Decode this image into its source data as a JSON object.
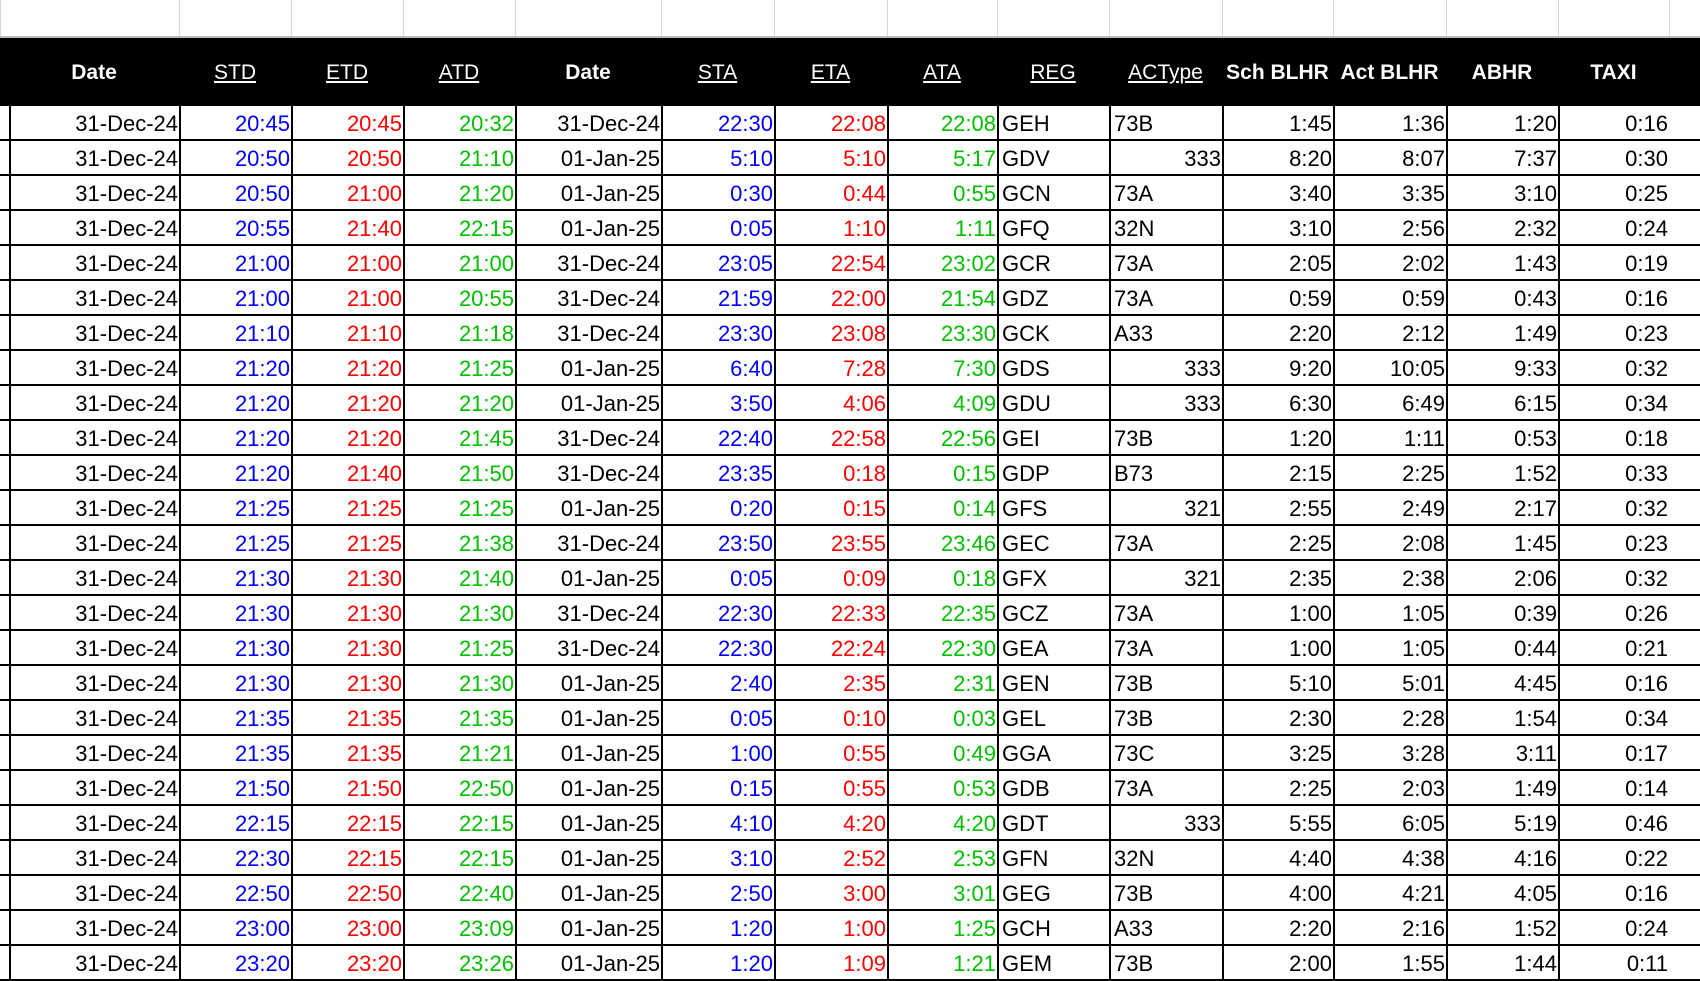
{
  "colors": {
    "std": "#0000ff",
    "etd": "#ff0000",
    "atd": "#00c000",
    "sta": "#0000ff",
    "eta": "#ff0000",
    "ata": "#00c000",
    "text": "#000000",
    "header_bg": "#000000"
  },
  "headers": [
    "Date",
    "STD",
    "ETD",
    "ATD",
    "Date",
    "STA",
    "ETA",
    "ATA",
    "REG",
    "ACType",
    "Sch BLHR",
    "Act BLHR",
    "ABHR",
    "TAXI"
  ],
  "rows": [
    [
      "31-Dec-24",
      "20:45",
      "20:45",
      "20:32",
      "31-Dec-24",
      "22:30",
      "22:08",
      "22:08",
      "GEH",
      "73B",
      "1:45",
      "1:36",
      "1:20",
      "0:16"
    ],
    [
      "31-Dec-24",
      "20:50",
      "20:50",
      "21:10",
      "01-Jan-25",
      "5:10",
      "5:10",
      "5:17",
      "GDV",
      "333",
      "8:20",
      "8:07",
      "7:37",
      "0:30"
    ],
    [
      "31-Dec-24",
      "20:50",
      "21:00",
      "21:20",
      "01-Jan-25",
      "0:30",
      "0:44",
      "0:55",
      "GCN",
      "73A",
      "3:40",
      "3:35",
      "3:10",
      "0:25"
    ],
    [
      "31-Dec-24",
      "20:55",
      "21:40",
      "22:15",
      "01-Jan-25",
      "0:05",
      "1:10",
      "1:11",
      "GFQ",
      "32N",
      "3:10",
      "2:56",
      "2:32",
      "0:24"
    ],
    [
      "31-Dec-24",
      "21:00",
      "21:00",
      "21:00",
      "31-Dec-24",
      "23:05",
      "22:54",
      "23:02",
      "GCR",
      "73A",
      "2:05",
      "2:02",
      "1:43",
      "0:19"
    ],
    [
      "31-Dec-24",
      "21:00",
      "21:00",
      "20:55",
      "31-Dec-24",
      "21:59",
      "22:00",
      "21:54",
      "GDZ",
      "73A",
      "0:59",
      "0:59",
      "0:43",
      "0:16"
    ],
    [
      "31-Dec-24",
      "21:10",
      "21:10",
      "21:18",
      "31-Dec-24",
      "23:30",
      "23:08",
      "23:30",
      "GCK",
      "A33",
      "2:20",
      "2:12",
      "1:49",
      "0:23"
    ],
    [
      "31-Dec-24",
      "21:20",
      "21:20",
      "21:25",
      "01-Jan-25",
      "6:40",
      "7:28",
      "7:30",
      "GDS",
      "333",
      "9:20",
      "10:05",
      "9:33",
      "0:32"
    ],
    [
      "31-Dec-24",
      "21:20",
      "21:20",
      "21:20",
      "01-Jan-25",
      "3:50",
      "4:06",
      "4:09",
      "GDU",
      "333",
      "6:30",
      "6:49",
      "6:15",
      "0:34"
    ],
    [
      "31-Dec-24",
      "21:20",
      "21:20",
      "21:45",
      "31-Dec-24",
      "22:40",
      "22:58",
      "22:56",
      "GEI",
      "73B",
      "1:20",
      "1:11",
      "0:53",
      "0:18"
    ],
    [
      "31-Dec-24",
      "21:20",
      "21:40",
      "21:50",
      "31-Dec-24",
      "23:35",
      "0:18",
      "0:15",
      "GDP",
      "B73",
      "2:15",
      "2:25",
      "1:52",
      "0:33"
    ],
    [
      "31-Dec-24",
      "21:25",
      "21:25",
      "21:25",
      "01-Jan-25",
      "0:20",
      "0:15",
      "0:14",
      "GFS",
      "321",
      "2:55",
      "2:49",
      "2:17",
      "0:32"
    ],
    [
      "31-Dec-24",
      "21:25",
      "21:25",
      "21:38",
      "31-Dec-24",
      "23:50",
      "23:55",
      "23:46",
      "GEC",
      "73A",
      "2:25",
      "2:08",
      "1:45",
      "0:23"
    ],
    [
      "31-Dec-24",
      "21:30",
      "21:30",
      "21:40",
      "01-Jan-25",
      "0:05",
      "0:09",
      "0:18",
      "GFX",
      "321",
      "2:35",
      "2:38",
      "2:06",
      "0:32"
    ],
    [
      "31-Dec-24",
      "21:30",
      "21:30",
      "21:30",
      "31-Dec-24",
      "22:30",
      "22:33",
      "22:35",
      "GCZ",
      "73A",
      "1:00",
      "1:05",
      "0:39",
      "0:26"
    ],
    [
      "31-Dec-24",
      "21:30",
      "21:30",
      "21:25",
      "31-Dec-24",
      "22:30",
      "22:24",
      "22:30",
      "GEA",
      "73A",
      "1:00",
      "1:05",
      "0:44",
      "0:21"
    ],
    [
      "31-Dec-24",
      "21:30",
      "21:30",
      "21:30",
      "01-Jan-25",
      "2:40",
      "2:35",
      "2:31",
      "GEN",
      "73B",
      "5:10",
      "5:01",
      "4:45",
      "0:16"
    ],
    [
      "31-Dec-24",
      "21:35",
      "21:35",
      "21:35",
      "01-Jan-25",
      "0:05",
      "0:10",
      "0:03",
      "GEL",
      "73B",
      "2:30",
      "2:28",
      "1:54",
      "0:34"
    ],
    [
      "31-Dec-24",
      "21:35",
      "21:35",
      "21:21",
      "01-Jan-25",
      "1:00",
      "0:55",
      "0:49",
      "GGA",
      "73C",
      "3:25",
      "3:28",
      "3:11",
      "0:17"
    ],
    [
      "31-Dec-24",
      "21:50",
      "21:50",
      "22:50",
      "01-Jan-25",
      "0:15",
      "0:55",
      "0:53",
      "GDB",
      "73A",
      "2:25",
      "2:03",
      "1:49",
      "0:14"
    ],
    [
      "31-Dec-24",
      "22:15",
      "22:15",
      "22:15",
      "01-Jan-25",
      "4:10",
      "4:20",
      "4:20",
      "GDT",
      "333",
      "5:55",
      "6:05",
      "5:19",
      "0:46"
    ],
    [
      "31-Dec-24",
      "22:30",
      "22:15",
      "22:15",
      "01-Jan-25",
      "3:10",
      "2:52",
      "2:53",
      "GFN",
      "32N",
      "4:40",
      "4:38",
      "4:16",
      "0:22"
    ],
    [
      "31-Dec-24",
      "22:50",
      "22:50",
      "22:40",
      "01-Jan-25",
      "2:50",
      "3:00",
      "3:01",
      "GEG",
      "73B",
      "4:00",
      "4:21",
      "4:05",
      "0:16"
    ],
    [
      "31-Dec-24",
      "23:00",
      "23:00",
      "23:09",
      "01-Jan-25",
      "1:20",
      "1:00",
      "1:25",
      "GCH",
      "A33",
      "2:20",
      "2:16",
      "1:52",
      "0:24"
    ],
    [
      "31-Dec-24",
      "23:20",
      "23:20",
      "23:26",
      "01-Jan-25",
      "1:20",
      "1:09",
      "1:21",
      "GEM",
      "73B",
      "2:00",
      "1:55",
      "1:44",
      "0:11"
    ]
  ]
}
